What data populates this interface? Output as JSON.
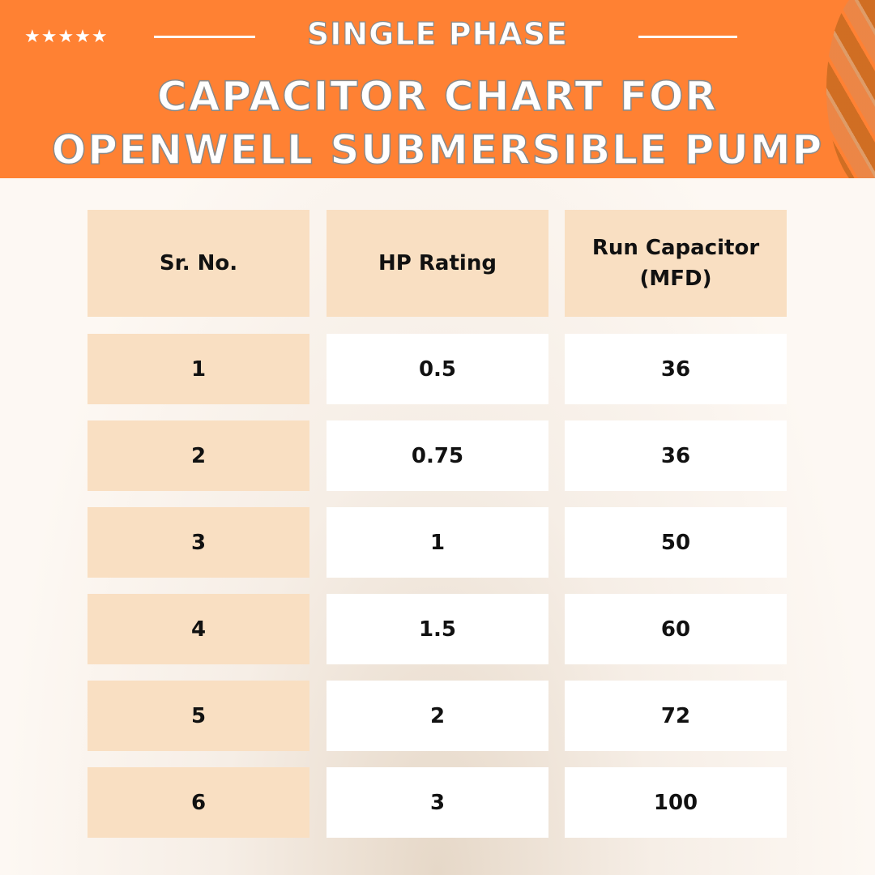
{
  "banner": {
    "subtitle": "SINGLE PHASE",
    "title_line1": "CAPACITOR CHART FOR",
    "title_line2": "OPENWELL SUBMERSIBLE PUMP",
    "stars": "★★★★★",
    "accent": "#ff8133"
  },
  "chart_data": {
    "type": "table",
    "columns": [
      "Sr. No.",
      "HP Rating",
      "Run Capacitor (MFD)"
    ],
    "rows": [
      [
        "1",
        "0.5",
        "36"
      ],
      [
        "2",
        "0.75",
        "36"
      ],
      [
        "3",
        "1",
        "50"
      ],
      [
        "4",
        "1.5",
        "60"
      ],
      [
        "5",
        "2",
        "72"
      ],
      [
        "6",
        "3",
        "100"
      ]
    ]
  }
}
